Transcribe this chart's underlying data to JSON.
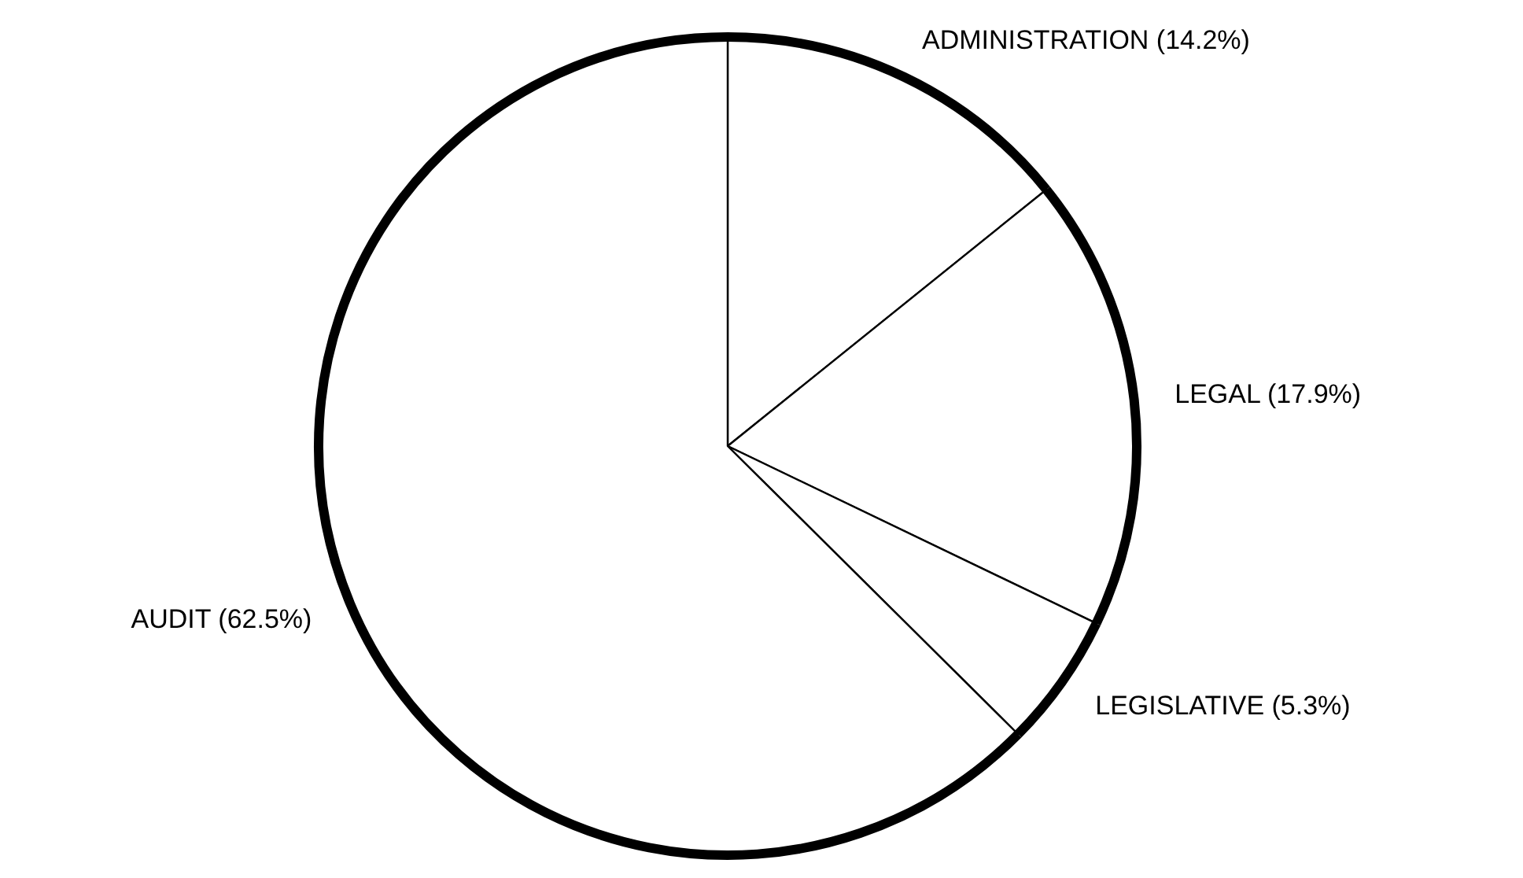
{
  "chart_data": {
    "type": "pie",
    "categories": [
      "ADMINISTRATION (14.2%)",
      "LEGAL (17.9%)",
      "LEGISLATIVE (5.3%)",
      "AUDIT (62.5%)"
    ],
    "values": [
      14.2,
      17.9,
      5.3,
      62.5
    ],
    "colors": [
      "#ffffff",
      "#ffffff",
      "#ffffff",
      "#ffffff"
    ]
  }
}
